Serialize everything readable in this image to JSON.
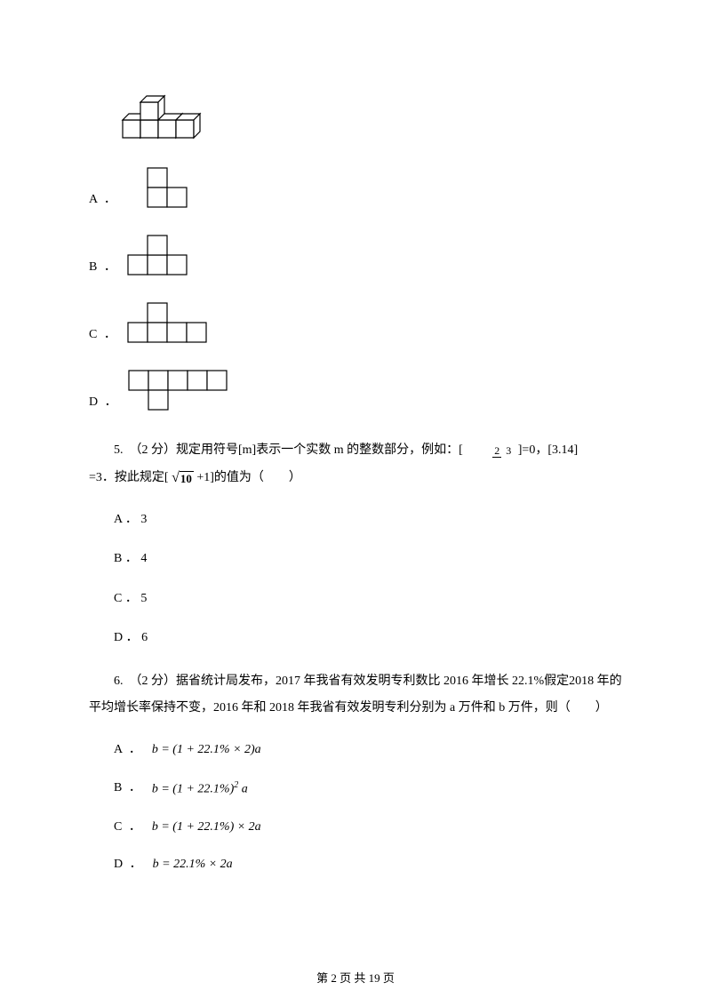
{
  "cube3d": {
    "stroke": "#000000",
    "fill": "#ffffff"
  },
  "q4_options": {
    "a": {
      "label": "A ．",
      "grid": {
        "cols": 3,
        "rows": 2,
        "cells": [
          [
            1,
            0
          ],
          [
            1,
            1
          ],
          [
            2,
            1
          ]
        ],
        "cell": 22
      }
    },
    "b": {
      "label": "B ．",
      "grid": {
        "cols": 3,
        "rows": 2,
        "cells": [
          [
            0,
            1
          ],
          [
            1,
            1
          ],
          [
            1,
            0
          ],
          [
            2,
            1
          ]
        ],
        "cell": 22
      }
    },
    "c": {
      "label": "C ．",
      "grid": {
        "cols": 4,
        "rows": 2,
        "cells": [
          [
            1,
            0
          ],
          [
            0,
            1
          ],
          [
            1,
            1
          ],
          [
            2,
            1
          ],
          [
            3,
            1
          ]
        ],
        "cell": 22
      }
    },
    "d": {
      "label": "D ．",
      "grid": {
        "cols": 5,
        "rows": 2,
        "cells": [
          [
            0,
            0
          ],
          [
            1,
            0
          ],
          [
            2,
            0
          ],
          [
            3,
            0
          ],
          [
            4,
            0
          ],
          [
            1,
            1
          ]
        ],
        "cell": 22
      }
    }
  },
  "q5": {
    "line1_a": "5.　（2 分）规定用符号[m]表示一个实数 m 的整数部分，例如：[",
    "frac": {
      "num": "2",
      "den": "3"
    },
    "line1_b": "]=0，[3.14]",
    "line2_a": "=3．按此规定[",
    "sqrt_val": "10",
    "line2_b": "+1]的值为（　　）",
    "options": {
      "a": "A ． 3",
      "b": "B ． 4",
      "c": "C ． 5",
      "d": "D ． 6"
    }
  },
  "q6": {
    "text": "6.　（2 分）据省统计局发布，2017 年我省有效发明专利数比 2016 年增长 22.1%假定2018 年的平均增长率保持不变，2016 年和 2018 年我省有效发明专利分别为 a 万件和 b 万件，则（　　）",
    "options": {
      "a": {
        "label": "A ．",
        "formula": "b = (1 + 22.1% × 2)a"
      },
      "b": {
        "label": "B ．",
        "formula_html": "b = (1 + 22.1%)<sup style='font-size:10px'>2</sup> a"
      },
      "c": {
        "label": "C ．",
        "formula": "b = (1 + 22.1%) × 2a"
      },
      "d": {
        "label": "D ．",
        "formula": "b = 22.1% × 2a"
      }
    }
  },
  "footer": {
    "page": "第 2 页 共 19 页"
  }
}
